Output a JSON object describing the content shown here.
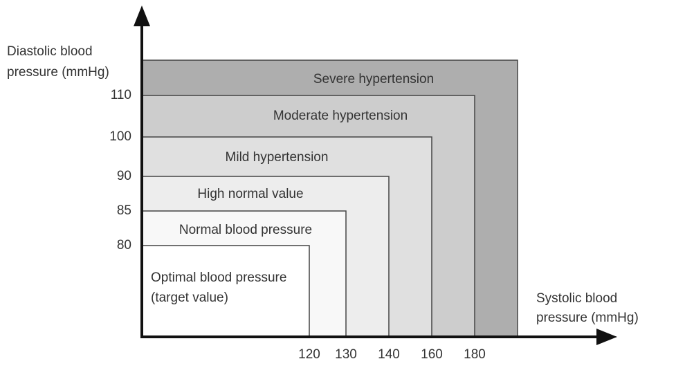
{
  "y_axis_label": "Diastolic blood pressure (mmHg)",
  "x_axis_label": "Systolic blood pressure (mmHg)",
  "yticks": [
    80,
    85,
    90,
    100,
    110
  ],
  "xticks": [
    120,
    130,
    140,
    160,
    180
  ],
  "zones": [
    {
      "label": "Optimal blood pressure (target value)",
      "color": "#ffffff"
    },
    {
      "label": "Normal blood pressure",
      "color": "#f8f8f8"
    },
    {
      "label": "High normal value",
      "color": "#ededed"
    },
    {
      "label": "Mild hypertension",
      "color": "#e0e0e0"
    },
    {
      "label": "Moderate hypertension",
      "color": "#cdcdcd"
    },
    {
      "label": "Severe hypertension",
      "color": "#aeaeae"
    }
  ]
}
